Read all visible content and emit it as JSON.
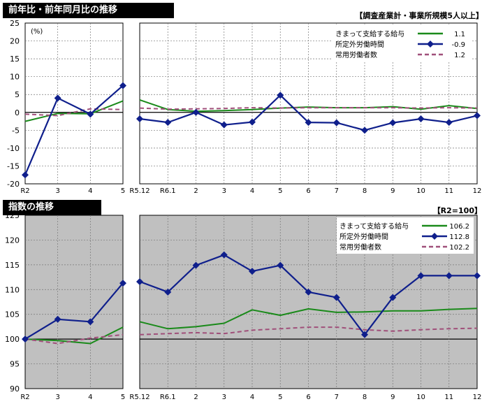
{
  "top_panel": {
    "title": "前年比・前年同月比の推移",
    "note": "【調査産業計・事業所規模5人以上】"
  },
  "bottom_panel": {
    "title": "指数の推移",
    "note": "【R2=100】"
  },
  "colors": {
    "wages": "#1a8a1a",
    "overtime": "#0f1f8c",
    "employees": "#a0507a",
    "plot_bg_top": "#ffffff",
    "plot_bg_bottom": "#c0c0c0"
  },
  "chart_data": [
    {
      "type": "line",
      "panel": "top-left",
      "ylabel": "(%)",
      "ylim": [
        -20,
        25
      ],
      "yticks": [
        -20,
        -15,
        -10,
        -5,
        0,
        5,
        10,
        15,
        20,
        25
      ],
      "categories": [
        "R2",
        "3",
        "4",
        "5"
      ],
      "series": [
        {
          "name": "きまって支給する給与",
          "values": [
            -2.5,
            -0.3,
            -0.4,
            3.2
          ]
        },
        {
          "name": "所定外労働時間",
          "values": [
            -17.5,
            4.0,
            -0.5,
            7.5
          ]
        },
        {
          "name": "常用労働者数",
          "values": [
            -0.5,
            -0.9,
            1.0,
            0.8
          ]
        }
      ]
    },
    {
      "type": "line",
      "panel": "top-right",
      "ylim": [
        -20,
        25
      ],
      "categories": [
        "R5.12",
        "R6.1",
        "2",
        "3",
        "4",
        "5",
        "6",
        "7",
        "8",
        "9",
        "10",
        "11",
        "12"
      ],
      "legend": [
        {
          "name": "きまって支給する給与",
          "value": "1.1"
        },
        {
          "name": "所定外労働時間",
          "value": "-0.9"
        },
        {
          "name": "常用労働者数",
          "value": "1.2"
        }
      ],
      "series": [
        {
          "name": "きまって支給する給与",
          "values": [
            3.5,
            0.8,
            0.3,
            0.5,
            0.8,
            1.2,
            1.5,
            1.3,
            1.3,
            1.6,
            0.9,
            1.9,
            1.1
          ]
        },
        {
          "name": "所定外労働時間",
          "values": [
            -1.8,
            -2.8,
            0.0,
            -3.5,
            -2.7,
            4.8,
            -2.8,
            -2.9,
            -5.0,
            -2.9,
            -1.8,
            -2.8,
            -0.9
          ]
        },
        {
          "name": "常用労働者数",
          "values": [
            1.2,
            0.9,
            1.0,
            1.1,
            1.3,
            1.2,
            1.3,
            1.3,
            1.3,
            1.3,
            1.2,
            1.3,
            1.2
          ]
        }
      ]
    },
    {
      "type": "line",
      "panel": "bottom-left",
      "ylim": [
        90,
        125
      ],
      "yticks": [
        90,
        95,
        100,
        105,
        110,
        115,
        120,
        125
      ],
      "categories": [
        "R2",
        "3",
        "4",
        "5"
      ],
      "series": [
        {
          "name": "きまって支給する給与",
          "values": [
            100.0,
            99.7,
            99.1,
            102.4
          ]
        },
        {
          "name": "所定外労働時間",
          "values": [
            100.0,
            104.0,
            103.5,
            111.3
          ]
        },
        {
          "name": "常用労働者数",
          "values": [
            100.0,
            99.1,
            100.2,
            100.9
          ]
        }
      ]
    },
    {
      "type": "line",
      "panel": "bottom-right",
      "ylim": [
        90,
        125
      ],
      "categories": [
        "R5.12",
        "R6.1",
        "2",
        "3",
        "4",
        "5",
        "6",
        "7",
        "8",
        "9",
        "10",
        "11",
        "12"
      ],
      "legend": [
        {
          "name": "きまって支給する給与",
          "value": "106.2"
        },
        {
          "name": "所定外労働時間",
          "value": "112.8"
        },
        {
          "name": "常用労働者数",
          "value": "102.2"
        }
      ],
      "series": [
        {
          "name": "きまって支給する給与",
          "values": [
            103.5,
            102.1,
            102.5,
            103.2,
            105.9,
            104.8,
            106.1,
            105.4,
            105.5,
            105.7,
            105.7,
            106.0,
            106.2
          ]
        },
        {
          "name": "所定外労働時間",
          "values": [
            111.6,
            109.5,
            114.9,
            117.0,
            113.7,
            114.9,
            109.5,
            108.4,
            100.9,
            108.4,
            112.8,
            112.8,
            112.8
          ]
        },
        {
          "name": "常用労働者数",
          "values": [
            100.9,
            101.1,
            101.3,
            101.1,
            101.8,
            102.1,
            102.4,
            102.4,
            101.9,
            101.6,
            101.9,
            102.1,
            102.2
          ]
        }
      ]
    }
  ]
}
